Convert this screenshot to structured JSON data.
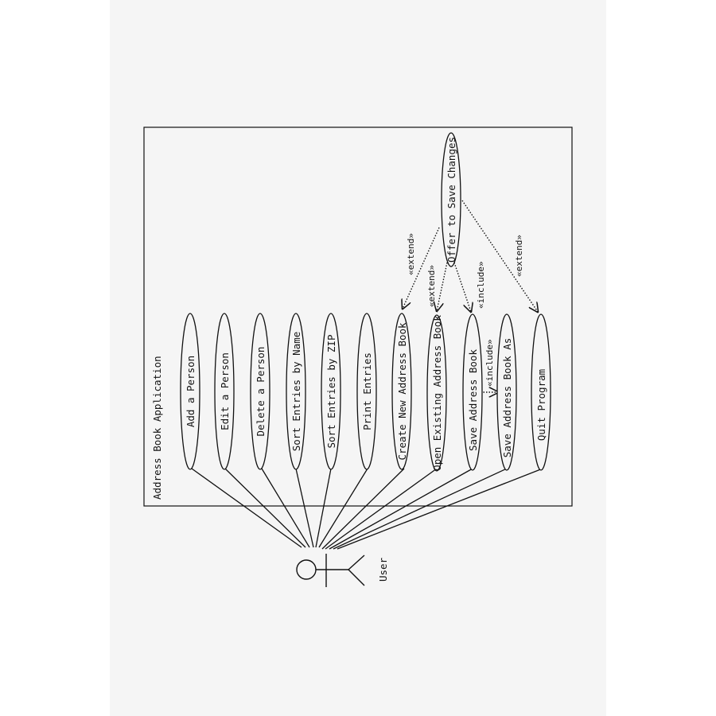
{
  "diagram": {
    "system_boundary_label": "Address Book Application",
    "actor": {
      "name": "User"
    },
    "use_cases": [
      {
        "id": "add",
        "label": "Add a Person"
      },
      {
        "id": "edit",
        "label": "Edit a Person"
      },
      {
        "id": "delete",
        "label": "Delete a Person"
      },
      {
        "id": "sort_name",
        "label": "Sort Entries by Name"
      },
      {
        "id": "sort_zip",
        "label": "Sort Entries by ZIP"
      },
      {
        "id": "print",
        "label": "Print Entries"
      },
      {
        "id": "create",
        "label": "Create New Address Book"
      },
      {
        "id": "open",
        "label": "Open Existing Address Book"
      },
      {
        "id": "save",
        "label": "Save Address Book"
      },
      {
        "id": "save_as",
        "label": "Save Address Book As"
      },
      {
        "id": "quit",
        "label": "Quit Program"
      },
      {
        "id": "offer",
        "label": "Offer to Save Changes"
      }
    ],
    "relationships": [
      {
        "from": "offer",
        "to": "create",
        "stereotype": "«extend»"
      },
      {
        "from": "offer",
        "to": "open",
        "stereotype": "«extend»"
      },
      {
        "from": "offer",
        "to": "save",
        "stereotype": "«include»"
      },
      {
        "from": "offer",
        "to": "quit",
        "stereotype": "«extend»"
      },
      {
        "from": "save",
        "to": "save_as",
        "stereotype": "«include»"
      }
    ]
  }
}
